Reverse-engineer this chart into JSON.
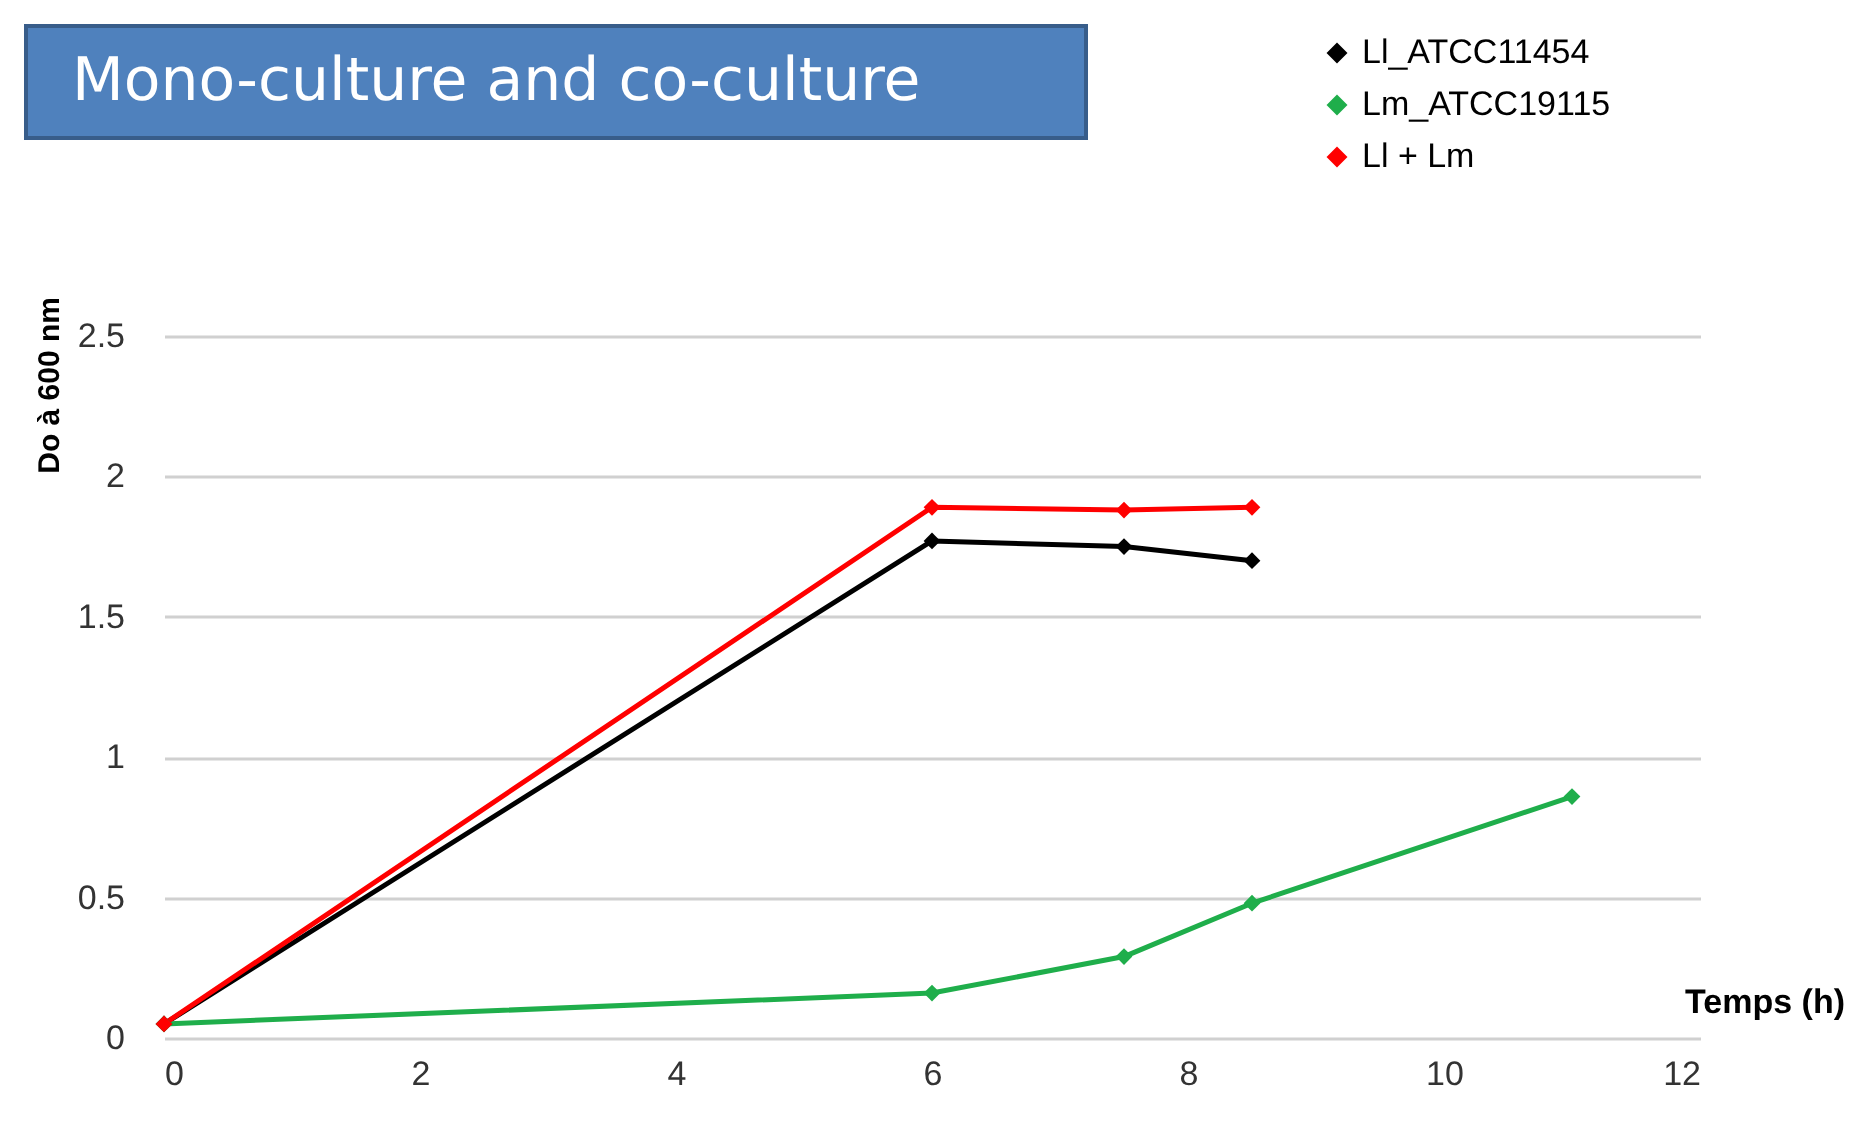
{
  "chart_data": {
    "type": "line",
    "title": "Mono-culture and co-culture",
    "xlabel": "Temps (h)",
    "ylabel": "Do à 600 nm",
    "series": [
      {
        "name": "Ll_ATCC11454",
        "color": "#000000",
        "x": [
          0,
          6,
          7.5,
          8.5
        ],
        "values": [
          0.05,
          1.77,
          1.75,
          1.7
        ]
      },
      {
        "name": "Lm_ATCC19115",
        "color": "#1fae4b",
        "x": [
          0,
          6,
          7.5,
          8.5,
          11
        ],
        "values": [
          0.05,
          0.16,
          0.29,
          0.48,
          0.86
        ]
      },
      {
        "name": "Ll + Lm",
        "color": "#ff0000",
        "x": [
          0,
          6,
          7.5,
          8.5
        ],
        "values": [
          0.05,
          1.89,
          1.88,
          1.89
        ]
      }
    ],
    "xlim": [
      0,
      12
    ],
    "xticks": [
      0,
      2,
      4,
      6,
      8,
      10,
      12
    ],
    "ylim": [
      0,
      2.5
    ],
    "yticks": [
      0,
      0.5,
      1,
      1.5,
      2,
      2.5
    ],
    "grid": "y",
    "legend": "top right",
    "marker": "diamond",
    "line_style": "solid"
  }
}
